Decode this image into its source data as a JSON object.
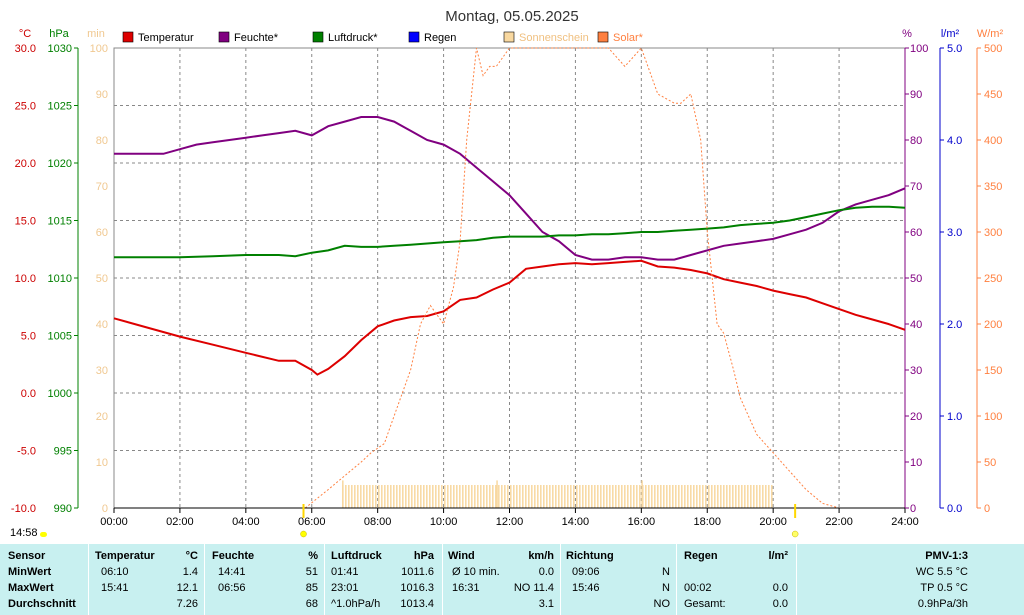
{
  "chart_data": {
    "type": "line",
    "title": "Montag, 05.05.2025",
    "x_ticks": [
      "00:00",
      "02:00",
      "04:00",
      "06:00",
      "08:00",
      "10:00",
      "12:00",
      "14:00",
      "16:00",
      "18:00",
      "20:00",
      "22:00",
      "24:00"
    ],
    "xlim": [
      0,
      24
    ],
    "grid": true,
    "legend_position": "top",
    "axes": [
      {
        "id": "temp",
        "unit": "°C",
        "side": "left",
        "color": "#cc0000",
        "ylim": [
          -10,
          30
        ],
        "ticks": [
          "30.0",
          "25.0",
          "20.0",
          "15.0",
          "10.0",
          "5.0",
          "0.0",
          "-5.0",
          "-10.0"
        ]
      },
      {
        "id": "pressure",
        "unit": "hPa",
        "side": "left",
        "color": "#008000",
        "ylim": [
          990,
          1030
        ],
        "ticks": [
          "1030",
          "1025",
          "1020",
          "1015",
          "1010",
          "1005",
          "1000",
          "995",
          "990"
        ]
      },
      {
        "id": "min",
        "unit": "min",
        "side": "left",
        "color": "#f0c890",
        "ylim": [
          0,
          100
        ],
        "ticks": [
          "100",
          "90",
          "80",
          "70",
          "60",
          "50",
          "40",
          "30",
          "20",
          "10",
          "0"
        ]
      },
      {
        "id": "humidity",
        "unit": "%",
        "side": "right",
        "color": "#800080",
        "ylim": [
          0,
          100
        ],
        "ticks": [
          "100",
          "90",
          "80",
          "70",
          "60",
          "50",
          "40",
          "30",
          "20",
          "10",
          "0"
        ]
      },
      {
        "id": "rain",
        "unit": "l/m²",
        "side": "right",
        "color": "#0000cc",
        "ylim": [
          0,
          5
        ],
        "ticks": [
          "5.0",
          "4.0",
          "3.0",
          "2.0",
          "1.0",
          "0.0"
        ]
      },
      {
        "id": "solar",
        "unit": "W/m²",
        "side": "right",
        "color": "#ff8040",
        "ylim": [
          0,
          500
        ],
        "ticks": [
          "500",
          "450",
          "400",
          "350",
          "300",
          "250",
          "200",
          "150",
          "100",
          "50",
          "0"
        ]
      }
    ],
    "legend": [
      {
        "label": "Temperatur",
        "color": "#dd0000"
      },
      {
        "label": "Feuchte*",
        "color": "#800080"
      },
      {
        "label": "Luftdruck*",
        "color": "#008000"
      },
      {
        "label": "Regen",
        "color": "#0000ff"
      },
      {
        "label": "Sonnenschein",
        "color": "#f8d8a0"
      },
      {
        "label": "Solar*",
        "color": "#ff8040"
      }
    ],
    "series": [
      {
        "name": "Temperatur",
        "axis": "temp",
        "color": "#dd0000",
        "x": [
          0,
          1,
          2,
          3,
          4,
          5,
          5.5,
          6,
          6.17,
          6.5,
          7,
          7.5,
          8,
          8.5,
          9,
          9.5,
          10,
          10.5,
          11,
          11.5,
          12,
          12.5,
          13,
          13.5,
          14,
          14.5,
          15,
          15.5,
          16,
          16.5,
          17,
          17.5,
          18,
          18.5,
          19,
          19.5,
          20,
          20.5,
          21,
          21.5,
          22,
          22.5,
          23,
          23.5,
          24
        ],
        "y": [
          6.5,
          5.7,
          4.9,
          4.2,
          3.5,
          2.8,
          2.8,
          2.0,
          1.6,
          2.1,
          3.2,
          4.6,
          5.8,
          6.3,
          6.6,
          6.7,
          7.1,
          8.1,
          8.3,
          9.0,
          9.6,
          10.8,
          11.0,
          11.2,
          11.3,
          11.2,
          11.3,
          11.4,
          11.5,
          11.0,
          10.9,
          10.7,
          10.4,
          9.9,
          9.6,
          9.3,
          8.9,
          8.6,
          8.3,
          7.8,
          7.3,
          6.8,
          6.4,
          6.0,
          5.5
        ]
      },
      {
        "name": "Feuchte*",
        "axis": "humidity",
        "color": "#800080",
        "x": [
          0,
          0.5,
          1,
          1.5,
          2,
          2.5,
          3,
          3.5,
          4,
          4.5,
          5,
          5.5,
          6,
          6.5,
          7,
          7.5,
          8,
          8.5,
          9,
          9.5,
          10,
          10.5,
          11,
          11.5,
          12,
          12.5,
          13,
          13.5,
          14,
          14.5,
          15,
          15.5,
          16,
          16.5,
          17,
          17.5,
          18,
          18.5,
          19,
          19.5,
          20,
          20.5,
          21,
          21.5,
          22,
          22.5,
          23,
          23.5,
          24
        ],
        "y": [
          77,
          77,
          77,
          77,
          78,
          79,
          79.5,
          80,
          80.5,
          81,
          81.5,
          82,
          81,
          83,
          84,
          85,
          85,
          84,
          82,
          80,
          79,
          77,
          74,
          71,
          68,
          64,
          60,
          58,
          55,
          54,
          54,
          54.5,
          54.5,
          54,
          54,
          55,
          56,
          57,
          57.5,
          58,
          58.5,
          59.5,
          60.5,
          62,
          64.5,
          66,
          67,
          68,
          69.5
        ]
      },
      {
        "name": "Luftdruck*",
        "axis": "pressure",
        "color": "#008000",
        "x": [
          0,
          1,
          2,
          3,
          4,
          5,
          5.5,
          6,
          6.5,
          7,
          7.5,
          8,
          8.5,
          9,
          9.5,
          10,
          10.5,
          11,
          11.5,
          12,
          12.5,
          13,
          13.5,
          14,
          14.5,
          15,
          15.5,
          16,
          16.5,
          17,
          17.5,
          18,
          18.5,
          19,
          19.5,
          20,
          20.5,
          21,
          21.5,
          22,
          22.5,
          23,
          23.5,
          24
        ],
        "y": [
          1011.8,
          1011.8,
          1011.8,
          1011.9,
          1012.0,
          1012.0,
          1011.9,
          1012.2,
          1012.4,
          1012.8,
          1012.7,
          1012.7,
          1012.8,
          1012.9,
          1013.0,
          1013.1,
          1013.2,
          1013.3,
          1013.5,
          1013.6,
          1013.6,
          1013.6,
          1013.7,
          1013.7,
          1013.8,
          1013.8,
          1013.9,
          1014.0,
          1014.0,
          1014.1,
          1014.2,
          1014.3,
          1014.4,
          1014.6,
          1014.7,
          1014.8,
          1015.0,
          1015.3,
          1015.6,
          1015.9,
          1016.1,
          1016.2,
          1016.2,
          1016.1
        ]
      },
      {
        "name": "Solar*",
        "axis": "solar",
        "color": "#ff8040",
        "style": "dotted",
        "x": [
          5.8,
          6.5,
          7,
          7.5,
          7.8,
          8.2,
          8.5,
          9,
          9.3,
          9.6,
          10,
          10.3,
          10.5,
          10.7,
          11,
          11.2,
          11.4,
          11.6,
          12,
          12.5,
          13,
          13.5,
          14,
          14.5,
          15,
          15.5,
          16,
          16.5,
          17,
          17.2,
          17.5,
          17.8,
          18,
          18.3,
          18.5,
          18.8,
          19,
          19.5,
          20,
          20.5,
          21,
          21.5,
          22
        ],
        "y": [
          0,
          20,
          35,
          50,
          60,
          70,
          100,
          150,
          200,
          220,
          200,
          240,
          290,
          400,
          500,
          470,
          480,
          480,
          500,
          500,
          500,
          500,
          500,
          500,
          500,
          480,
          500,
          450,
          440,
          440,
          450,
          400,
          300,
          200,
          190,
          150,
          120,
          80,
          60,
          40,
          20,
          5,
          0
        ]
      }
    ],
    "sunshine_bars": {
      "axis": "min",
      "color": "#f8d8a0",
      "start": 6.92,
      "end": 20.0,
      "value": 5,
      "max_value": 6
    }
  },
  "markers": {
    "sunrise": "05:45",
    "sunset": "20:40"
  },
  "timestamp": "14:58",
  "stats": {
    "headers": {
      "sensor": "Sensor",
      "temp": "Temperatur",
      "temp_unit": "°C",
      "hum": "Feuchte",
      "hum_unit": "%",
      "press": "Luftdruck",
      "press_unit": "hPa",
      "wind": "Wind",
      "wind_unit": "km/h",
      "dir": "Richtung",
      "rain": "Regen",
      "rain_unit": "l/m²",
      "pmv": "PMV-1:3"
    },
    "rows": [
      {
        "label": "MinWert",
        "temp_time": "06:10",
        "temp_val": "1.4",
        "hum_time": "14:41",
        "hum_val": "51",
        "press_time": "01:41",
        "press_val": "1011.6",
        "wind_time": "Ø 10 min.",
        "wind_val": "0.0",
        "dir_time": "09:06",
        "dir_val": "N",
        "rain_time": "",
        "rain_val": "",
        "pmv": "WC 5.5 °C"
      },
      {
        "label": "MaxWert",
        "temp_time": "15:41",
        "temp_val": "12.1",
        "hum_time": "06:56",
        "hum_val": "85",
        "press_time": "23:01",
        "press_val": "1016.3",
        "wind_time": "16:31",
        "wind_val": "NO 11.4",
        "dir_time": "15:46",
        "dir_val": "N",
        "rain_time": "00:02",
        "rain_val": "0.0",
        "pmv": "TP 0.5 °C"
      },
      {
        "label": "Durchschnitt",
        "temp_time": "",
        "temp_val": "7.26",
        "hum_time": "",
        "hum_val": "68",
        "press_time": "^1.0hPa/h",
        "press_val": "1013.4",
        "wind_time": "",
        "wind_val": "3.1",
        "dir_time": "",
        "dir_val": "NO",
        "rain_time": "Gesamt:",
        "rain_val": "0.0",
        "pmv": "0.9hPa/3h"
      }
    ]
  }
}
